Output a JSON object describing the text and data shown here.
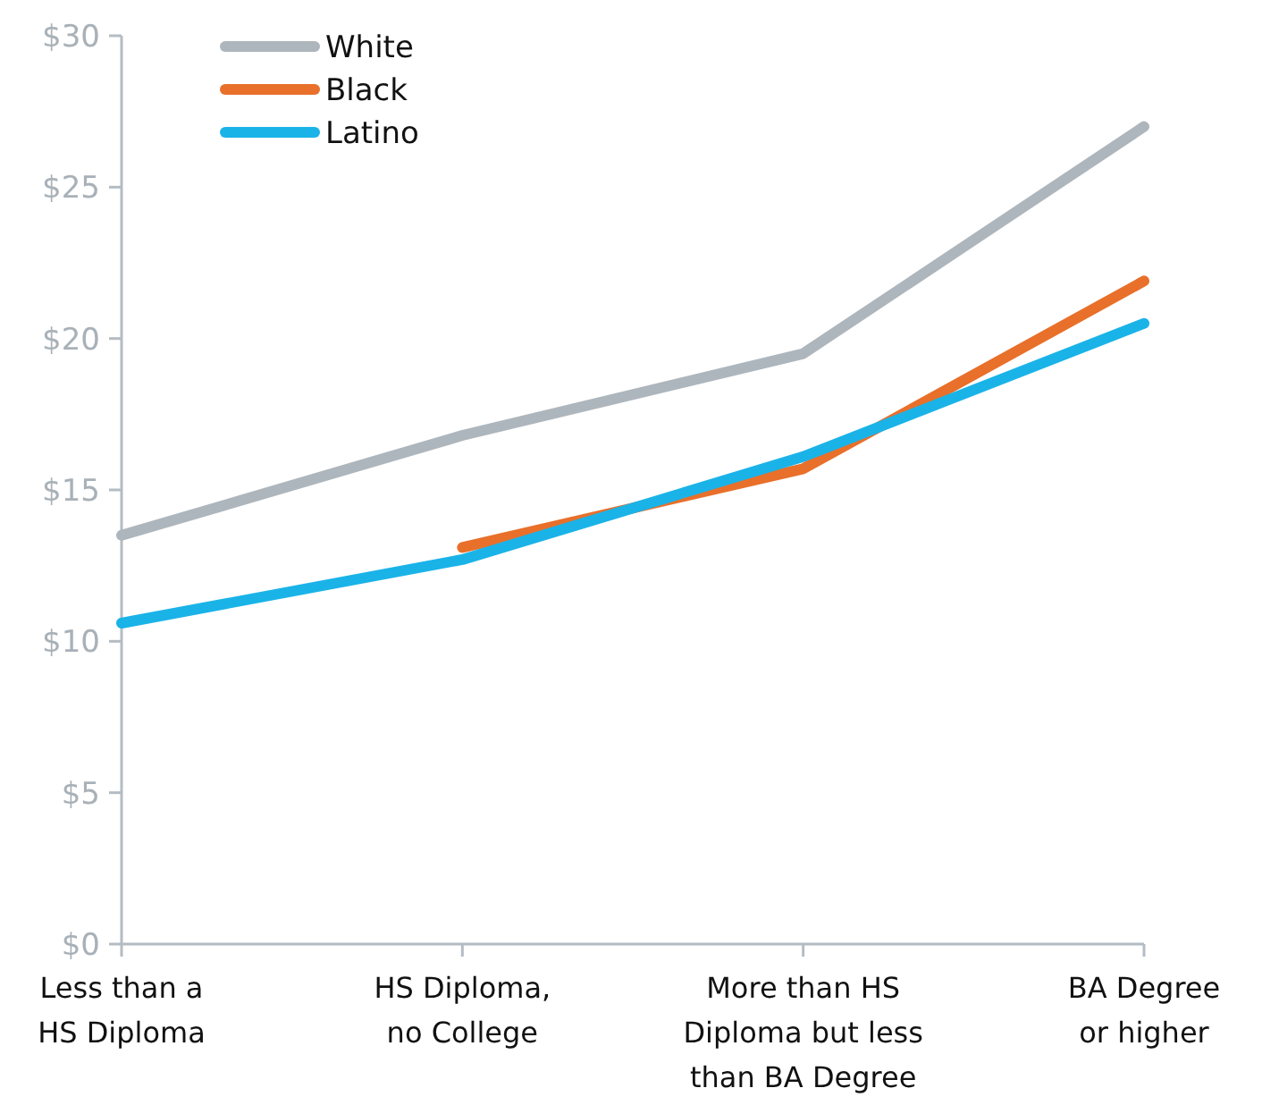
{
  "chart_data": {
    "type": "line",
    "categories": [
      "Less than a\nHS Diploma",
      "HS Diploma,\nno College",
      "More than HS\nDiploma but less\nthan BA Degree",
      "BA Degree\nor higher"
    ],
    "series": [
      {
        "name": "White",
        "color": "#aeb6bd",
        "values": [
          13.5,
          16.8,
          19.5,
          27
        ]
      },
      {
        "name": "Black",
        "color": "#e8702a",
        "values": [
          null,
          13.1,
          15.7,
          21.9
        ]
      },
      {
        "name": "Latino",
        "color": "#1ab3e8",
        "values": [
          10.6,
          12.7,
          16.1,
          20.5
        ]
      }
    ],
    "ylim": [
      0,
      30
    ],
    "yticks": [
      {
        "value": 0,
        "label": "$0"
      },
      {
        "value": 5,
        "label": "$5"
      },
      {
        "value": 10,
        "label": "$10"
      },
      {
        "value": 15,
        "label": "$15"
      },
      {
        "value": 20,
        "label": "$20"
      },
      {
        "value": 25,
        "label": "$25"
      },
      {
        "value": 30,
        "label": "$30"
      }
    ],
    "grid": false,
    "legend": "top left",
    "marker": "none",
    "line_style": "solid"
  }
}
